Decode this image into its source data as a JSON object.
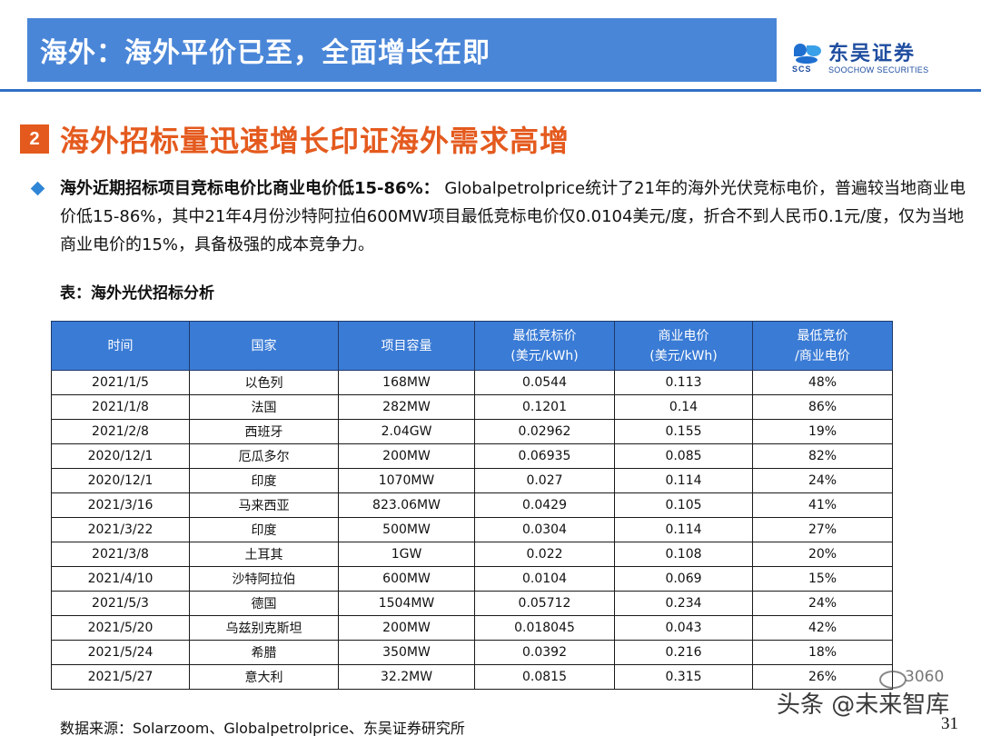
{
  "header": {
    "title": "海外：海外平价已至，全面增长在即",
    "logo_cn": "东吴证券",
    "logo_en": "SOOCHOW SECURITIES",
    "logo_mark": "SCS"
  },
  "section": {
    "number": "2",
    "title": "海外招标量迅速增长印证海外需求高增"
  },
  "bullet": {
    "lead": "海外近期招标项目竞标电价比商业电价低15-86%：",
    "text": " Globalpetrolprice统计了21年的海外光伏竞标电价，普遍较当地商业电价低15-86%，其中21年4月份沙特阿拉伯600MW项目最低竞标电价仅0.0104美元/度，折合不到人民币0.1元/度，仅为当地商业电价的15%，具备极强的成本竞争力。"
  },
  "table": {
    "caption": "表：海外光伏招标分析",
    "headers": [
      [
        "时间"
      ],
      [
        "国家"
      ],
      [
        "项目容量"
      ],
      [
        "最低竞标价",
        "(美元/kWh)"
      ],
      [
        "商业电价",
        "(美元/kWh)"
      ],
      [
        "最低竞价",
        "/商业电价"
      ]
    ],
    "rows": [
      [
        "2021/1/5",
        "以色列",
        "168MW",
        "0.0544",
        "0.113",
        "48%"
      ],
      [
        "2021/1/8",
        "法国",
        "282MW",
        "0.1201",
        "0.14",
        "86%"
      ],
      [
        "2021/2/8",
        "西班牙",
        "2.04GW",
        "0.02962",
        "0.155",
        "19%"
      ],
      [
        "2020/12/1",
        "厄瓜多尔",
        "200MW",
        "0.06935",
        "0.085",
        "82%"
      ],
      [
        "2020/12/1",
        "印度",
        "1070MW",
        "0.027",
        "0.114",
        "24%"
      ],
      [
        "2021/3/16",
        "马来西亚",
        "823.06MW",
        "0.0429",
        "0.105",
        "41%"
      ],
      [
        "2021/3/22",
        "印度",
        "500MW",
        "0.0304",
        "0.114",
        "27%"
      ],
      [
        "2021/3/8",
        "土耳其",
        "1GW",
        "0.022",
        "0.108",
        "20%"
      ],
      [
        "2021/4/10",
        "沙特阿拉伯",
        "600MW",
        "0.0104",
        "0.069",
        "15%"
      ],
      [
        "2021/5/3",
        "德国",
        "1504MW",
        "0.05712",
        "0.234",
        "24%"
      ],
      [
        "2021/5/20",
        "乌兹别克斯坦",
        "200MW",
        "0.018045",
        "0.043",
        "42%"
      ],
      [
        "2021/5/24",
        "希腊",
        "350MW",
        "0.0392",
        "0.216",
        "18%"
      ],
      [
        "2021/5/27",
        "意大利",
        "32.2MW",
        "0.0815",
        "0.315",
        "26%"
      ]
    ]
  },
  "footer": {
    "source": "数据来源：Solarzoom、Globalpetrolprice、东吴证券研究所",
    "page": "31"
  },
  "watermark": {
    "text": "头条 @未来智库",
    "number": "3060"
  },
  "colors": {
    "title_bar": "#4a86d8",
    "accent_orange": "#e45a1e",
    "table_header": "#3a7bd5",
    "brand_blue": "#1f4ea0"
  }
}
